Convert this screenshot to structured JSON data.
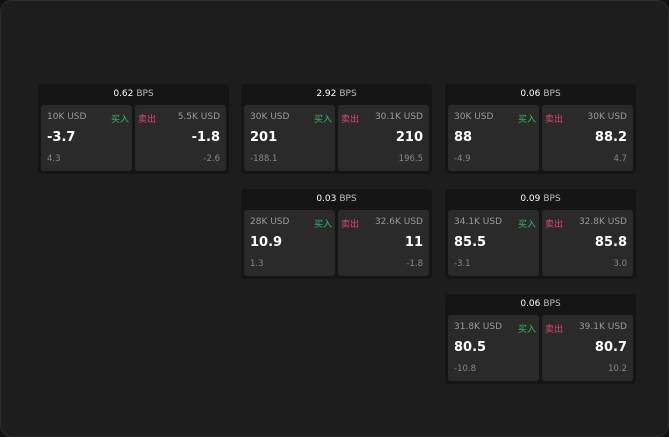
{
  "unit": "BPS",
  "buy_label": "买入",
  "sell_label": "卖出",
  "cards": [
    {
      "spread": "0.62",
      "buy": {
        "amount": "10K USD",
        "price": "-3.7",
        "change": "4.3"
      },
      "sell": {
        "amount": "5.5K USD",
        "price": "-1.8",
        "change": "-2.6"
      }
    },
    {
      "spread": "2.92",
      "buy": {
        "amount": "30K USD",
        "price": "201",
        "change": "-188.1"
      },
      "sell": {
        "amount": "30.1K USD",
        "price": "210",
        "change": "196.5"
      }
    },
    {
      "spread": "0.06",
      "buy": {
        "amount": "30K USD",
        "price": "88",
        "change": "-4.9"
      },
      "sell": {
        "amount": "30K USD",
        "price": "88.2",
        "change": "4.7"
      }
    },
    {
      "spread": "0.03",
      "buy": {
        "amount": "28K USD",
        "price": "10.9",
        "change": "1.3"
      },
      "sell": {
        "amount": "32.6K USD",
        "price": "11",
        "change": "-1.8"
      }
    },
    {
      "spread": "0.09",
      "buy": {
        "amount": "34.1K USD",
        "price": "85.5",
        "change": "-3.1"
      },
      "sell": {
        "amount": "32.8K USD",
        "price": "85.8",
        "change": "3.0"
      }
    },
    {
      "spread": "0.06",
      "buy": {
        "amount": "31.8K USD",
        "price": "80.5",
        "change": "-10.8"
      },
      "sell": {
        "amount": "39.1K USD",
        "price": "80.7",
        "change": "10.2"
      }
    }
  ]
}
